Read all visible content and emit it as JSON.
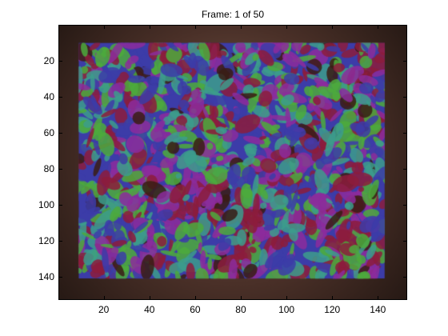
{
  "figure": {
    "title": "Frame: 1 of 50"
  },
  "axes": {
    "x_ticks": [
      "20",
      "40",
      "60",
      "80",
      "100",
      "120",
      "140"
    ],
    "y_ticks": [
      "20",
      "40",
      "60",
      "80",
      "100",
      "120",
      "140"
    ]
  },
  "image": {
    "description_colors": [
      "#8c1c3c",
      "#3c3ca8",
      "#4caa3c",
      "#3c9c8c",
      "#8c2c9c",
      "#3a1c14"
    ]
  }
}
